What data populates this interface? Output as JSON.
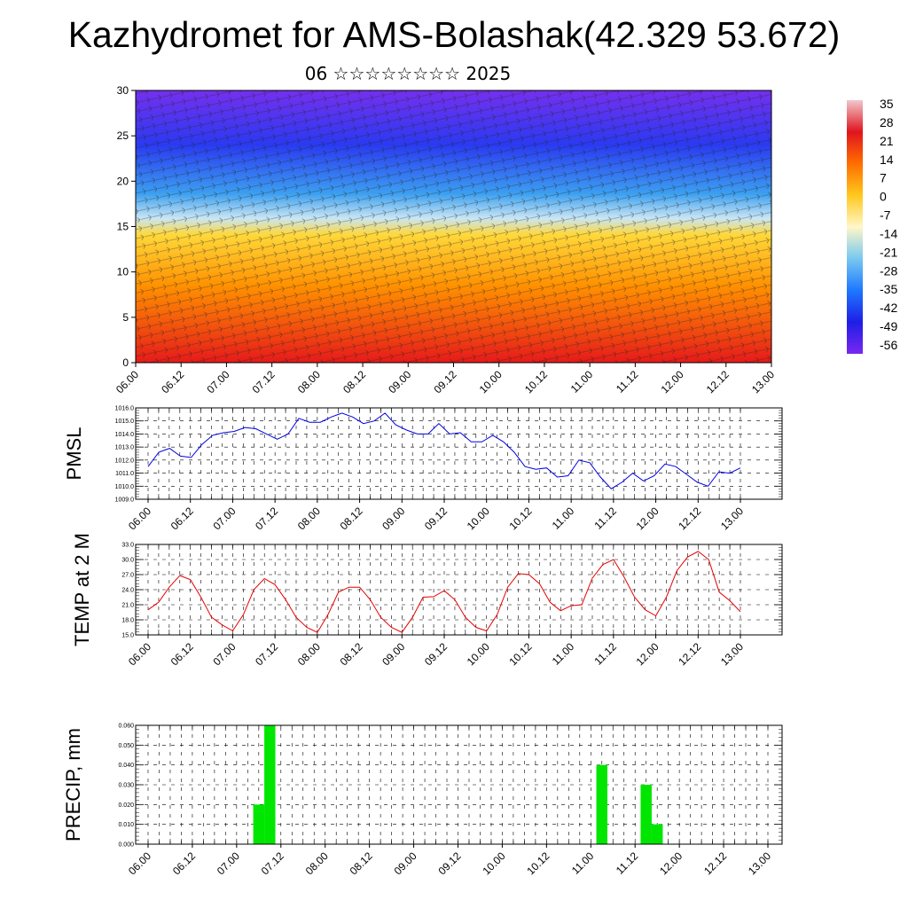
{
  "title": "Kazhydromet for AMS-Bolashak(42.329 53.672)",
  "subtitle": "06 ☆☆☆☆☆☆☆☆ 2025",
  "chart_data": [
    {
      "type": "heatmap",
      "ylim": [
        0,
        30
      ],
      "y_ticks": [
        "0",
        "5",
        "10",
        "15",
        "20",
        "25",
        "30"
      ],
      "x_ticks": [
        "06.00",
        "06.12",
        "07.00",
        "07.12",
        "08.00",
        "08.12",
        "09.00",
        "09.12",
        "10.00",
        "10.12",
        "11.00",
        "11.12",
        "12.00",
        "12.12",
        "13.00"
      ],
      "colorbar": {
        "labels": [
          "35",
          "28",
          "21",
          "14",
          "7",
          "0",
          "-7",
          "-14",
          "-21",
          "-28",
          "-35",
          "-42",
          "-49",
          "-56"
        ],
        "colors": [
          "#f0c8cc",
          "#e0141e",
          "#ff6e00",
          "#ffc81e",
          "#fff7c8",
          "#78c8f0",
          "#1e78ff",
          "#1e1ee6",
          "#7828f0"
        ]
      },
      "field_colors": {
        "bottom": "#e61a1a",
        "mid_low": "#ff9000",
        "mid": "#ffd83a",
        "mid_high": "#c9e6f5",
        "high": "#3ca0f0",
        "upper": "#2a3af0",
        "top": "#7530ee"
      }
    },
    {
      "type": "line",
      "ylabel": "PMSL",
      "ylim": [
        1009.0,
        1016.0
      ],
      "y_ticks": [
        "1009.0",
        "1010.0",
        "1011.0",
        "1012.0",
        "1013.0",
        "1014.0",
        "1015.0",
        "1016.0"
      ],
      "x_ticks": [
        "06.00",
        "06.12",
        "07.00",
        "07.12",
        "08.00",
        "08.12",
        "09.00",
        "09.12",
        "10.00",
        "10.12",
        "11.00",
        "11.12",
        "12.00",
        "12.12",
        "13.00"
      ],
      "color": "#0000e6",
      "series": [
        {
          "values": [
            1011.5,
            1012.6,
            1012.9,
            1012.3,
            1012.2,
            1013.2,
            1013.9,
            1014.1,
            1014.2,
            1014.5,
            1014.4,
            1014.0,
            1013.6,
            1014.0,
            1015.2,
            1014.9,
            1014.9,
            1015.3,
            1015.6,
            1015.3,
            1014.8,
            1015.0,
            1015.6,
            1014.7,
            1014.3,
            1014.0,
            1014.0,
            1014.8,
            1014.0,
            1014.1,
            1013.4,
            1013.4,
            1013.9,
            1013.4,
            1012.6,
            1011.5,
            1011.3,
            1011.4,
            1010.7,
            1010.8,
            1012.0,
            1011.8,
            1010.7,
            1009.8,
            1010.3,
            1011.0,
            1010.4,
            1010.8,
            1011.7,
            1011.5,
            1010.9,
            1010.3,
            1010.0,
            1011.1,
            1011.0,
            1011.4
          ]
        }
      ]
    },
    {
      "type": "line",
      "ylabel": "TEMP at 2 M",
      "ylim": [
        15.0,
        33.0
      ],
      "y_ticks": [
        "15.0",
        "18.0",
        "21.0",
        "24.0",
        "27.0",
        "30.0",
        "33.0"
      ],
      "x_ticks": [
        "06.00",
        "06.12",
        "07.00",
        "07.12",
        "08.00",
        "08.12",
        "09.00",
        "09.12",
        "10.00",
        "10.12",
        "11.00",
        "11.12",
        "12.00",
        "12.12",
        "13.00"
      ],
      "color": "#e60000",
      "series": [
        {
          "values": [
            20.0,
            21.5,
            24.5,
            26.8,
            26.0,
            22.5,
            18.5,
            17.0,
            15.8,
            19.0,
            24.0,
            26.2,
            25.0,
            22.0,
            18.5,
            16.5,
            15.5,
            19.0,
            23.5,
            24.5,
            24.5,
            22.0,
            18.5,
            16.5,
            15.5,
            18.5,
            22.5,
            22.6,
            23.8,
            22.0,
            18.5,
            16.5,
            15.8,
            19.0,
            24.5,
            27.2,
            27.0,
            25.2,
            21.5,
            19.8,
            20.8,
            21.0,
            26.3,
            29.0,
            30.0,
            26.5,
            22.5,
            20.0,
            18.8,
            22.5,
            27.8,
            30.5,
            31.6,
            30.0,
            23.5,
            21.8,
            19.6
          ]
        }
      ]
    },
    {
      "type": "bar",
      "ylabel": "PRECIP, mm",
      "ylim": [
        0.0,
        0.06
      ],
      "y_ticks": [
        "0.000",
        "0.010",
        "0.020",
        "0.030",
        "0.040",
        "0.050",
        "0.060"
      ],
      "x_ticks": [
        "06.00",
        "06.12",
        "07.00",
        "07.12",
        "08.00",
        "08.12",
        "09.00",
        "09.12",
        "10.00",
        "10.12",
        "11.00",
        "11.12",
        "12.00",
        "12.12",
        "13.00"
      ],
      "color": "#00e600",
      "series": [
        {
          "values": [
            0,
            0,
            0,
            0,
            0,
            0,
            0,
            0,
            0,
            0,
            0.02,
            0.06,
            0,
            0,
            0,
            0,
            0,
            0,
            0,
            0,
            0,
            0,
            0,
            0,
            0,
            0,
            0,
            0,
            0,
            0,
            0,
            0,
            0,
            0,
            0,
            0,
            0,
            0,
            0,
            0,
            0,
            0.04,
            0,
            0,
            0,
            0.03,
            0.01,
            0,
            0,
            0,
            0,
            0,
            0,
            0,
            0,
            0,
            0
          ]
        }
      ]
    }
  ]
}
